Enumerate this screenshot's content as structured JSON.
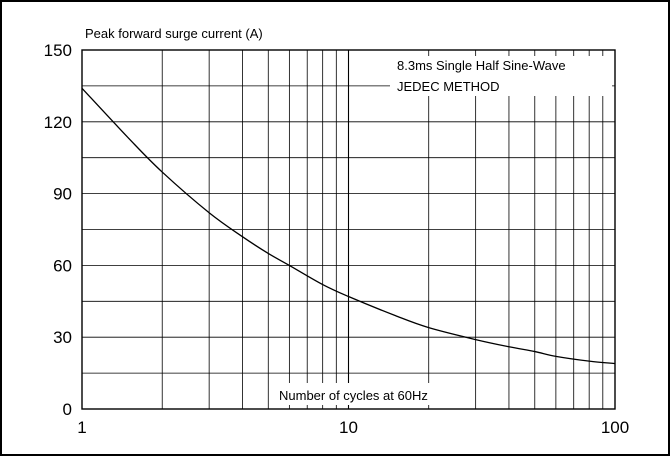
{
  "chart_data": {
    "type": "line",
    "ylabel": "Peak forward surge current (A)",
    "xlabel": "Number of cycles at 60Hz",
    "annotations": [
      "8.3ms Single Half Sine-Wave",
      "JEDEC METHOD"
    ],
    "x_scale": "log",
    "xlim": [
      1,
      100
    ],
    "ylim": [
      0,
      150
    ],
    "x_ticks": [
      1,
      10,
      100
    ],
    "x_tick_labels": [
      "1",
      "10",
      "100"
    ],
    "y_ticks": [
      0,
      30,
      60,
      90,
      120,
      150
    ],
    "y_tick_labels": [
      "0",
      "30",
      "60",
      "90",
      "120",
      "150"
    ],
    "grid": true,
    "series": [
      {
        "x": [
          1,
          1.5,
          2,
          3,
          4,
          5,
          6,
          8,
          10,
          15,
          20,
          30,
          40,
          50,
          60,
          80,
          100
        ],
        "y": [
          134,
          113,
          99,
          82,
          72,
          65,
          60,
          52,
          47,
          39,
          34,
          29,
          26,
          24,
          22,
          20,
          19
        ]
      }
    ],
    "colors": {
      "line": "#000000",
      "grid": "#000000",
      "background": "#ffffff"
    }
  }
}
